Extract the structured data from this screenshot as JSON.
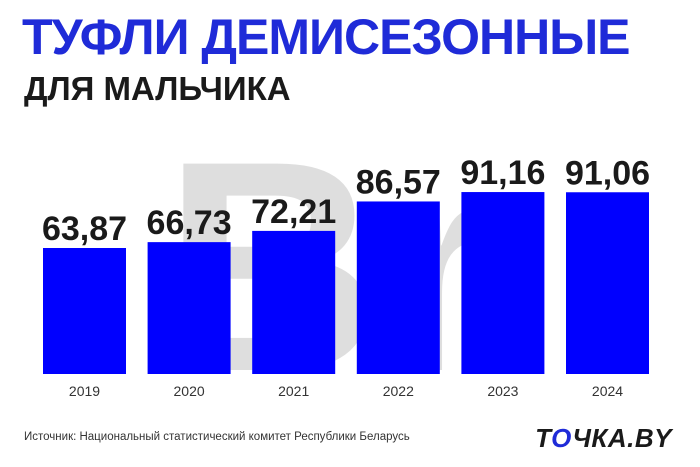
{
  "header": {
    "title": "ТУФЛИ ДЕМИСЕЗОННЫЕ",
    "subtitle": "ДЛЯ МАЛЬЧИКА"
  },
  "footer": {
    "source": "Источник: Национальный статистический комитет Республики Беларусь",
    "brand_prefix": "Т",
    "brand_o": "О",
    "brand_suffix": "ЧКА.BY"
  },
  "watermark": "Br",
  "colors": {
    "bar": "#0000ff",
    "title": "#1f2bd8",
    "label": "#1a1a1a",
    "watermark": "#d9d9d9"
  },
  "chart_data": {
    "type": "bar",
    "categories": [
      "2019",
      "2020",
      "2021",
      "2022",
      "2023",
      "2024"
    ],
    "values": [
      63.87,
      66.73,
      72.21,
      86.57,
      91.16,
      91.06
    ],
    "value_labels": [
      "63,87",
      "66,73",
      "72,21",
      "86,57",
      "91,16",
      "91,06"
    ],
    "title": "ТУФЛИ ДЕМИСЕЗОННЫЕ",
    "xlabel": "",
    "ylabel": "",
    "grid": false
  }
}
